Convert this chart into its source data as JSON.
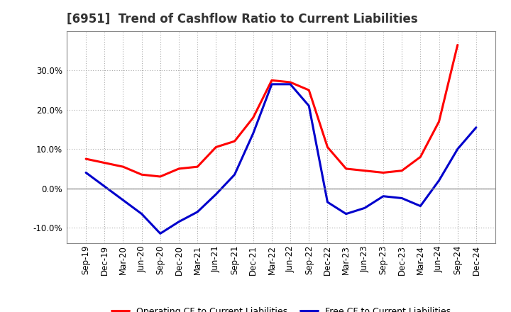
{
  "title": "[6951]  Trend of Cashflow Ratio to Current Liabilities",
  "x_labels": [
    "Sep-19",
    "Dec-19",
    "Mar-20",
    "Jun-20",
    "Sep-20",
    "Dec-20",
    "Mar-21",
    "Jun-21",
    "Sep-21",
    "Dec-21",
    "Mar-22",
    "Jun-22",
    "Sep-22",
    "Dec-22",
    "Mar-23",
    "Jun-23",
    "Sep-23",
    "Dec-23",
    "Mar-24",
    "Jun-24",
    "Sep-24",
    "Dec-24"
  ],
  "operating_cf": [
    7.5,
    6.5,
    5.5,
    3.5,
    3.0,
    5.0,
    5.5,
    10.5,
    12.0,
    18.0,
    27.5,
    27.0,
    25.0,
    10.5,
    5.0,
    4.5,
    4.0,
    4.5,
    8.0,
    17.0,
    36.5,
    null
  ],
  "free_cf": [
    4.0,
    0.5,
    -3.0,
    -6.5,
    -11.5,
    -8.5,
    -6.0,
    -1.5,
    3.5,
    14.0,
    26.5,
    26.5,
    21.0,
    -3.5,
    -6.5,
    -5.0,
    -2.0,
    -2.5,
    -4.5,
    2.0,
    10.0,
    15.5
  ],
  "operating_color": "#FF0000",
  "free_color": "#0000CC",
  "ylim": [
    -14,
    40
  ],
  "yticks": [
    -10.0,
    0.0,
    10.0,
    20.0,
    30.0
  ],
  "background_color": "#FFFFFF",
  "plot_bg_color": "#FFFFFF",
  "grid_color": "#AAAAAA",
  "zero_line_color": "#888888",
  "legend_op": "Operating CF to Current Liabilities",
  "legend_free": "Free CF to Current Liabilities",
  "title_fontsize": 12,
  "label_fontsize": 8.5,
  "line_width": 2.2
}
